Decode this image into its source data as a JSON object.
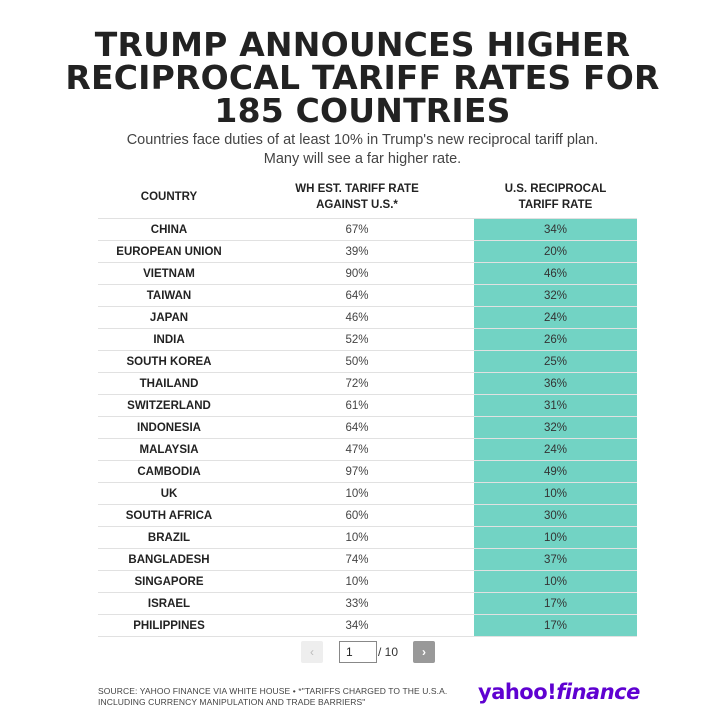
{
  "title_lines": [
    "TRUMP ANNOUNCES HIGHER",
    "RECIPROCAL TARIFF RATES FOR",
    "185 COUNTRIES"
  ],
  "subtitle_lines": [
    "Countries face duties of at least 10% in Trump's new reciprocal tariff plan.",
    "Many will see a far higher rate."
  ],
  "chart_data": {
    "type": "table",
    "columns": [
      "COUNTRY",
      "WH EST. TARIFF RATE AGAINST U.S.*",
      "U.S. RECIPROCAL TARIFF RATE"
    ],
    "column_header_lines": [
      [
        "COUNTRY"
      ],
      [
        "WH EST. TARIFF RATE",
        "AGAINST U.S.*"
      ],
      [
        "U.S. RECIPROCAL",
        "TARIFF RATE"
      ]
    ],
    "rows": [
      [
        "CHINA",
        "67%",
        "34%"
      ],
      [
        "EUROPEAN UNION",
        "39%",
        "20%"
      ],
      [
        "VIETNAM",
        "90%",
        "46%"
      ],
      [
        "TAIWAN",
        "64%",
        "32%"
      ],
      [
        "JAPAN",
        "46%",
        "24%"
      ],
      [
        "INDIA",
        "52%",
        "26%"
      ],
      [
        "SOUTH KOREA",
        "50%",
        "25%"
      ],
      [
        "THAILAND",
        "72%",
        "36%"
      ],
      [
        "SWITZERLAND",
        "61%",
        "31%"
      ],
      [
        "INDONESIA",
        "64%",
        "32%"
      ],
      [
        "MALAYSIA",
        "47%",
        "24%"
      ],
      [
        "CAMBODIA",
        "97%",
        "49%"
      ],
      [
        "UK",
        "10%",
        "10%"
      ],
      [
        "SOUTH AFRICA",
        "60%",
        "30%"
      ],
      [
        "BRAZIL",
        "10%",
        "10%"
      ],
      [
        "BANGLADESH",
        "74%",
        "37%"
      ],
      [
        "SINGAPORE",
        "10%",
        "10%"
      ],
      [
        "ISRAEL",
        "33%",
        "17%"
      ],
      [
        "PHILIPPINES",
        "34%",
        "17%"
      ]
    ]
  },
  "pagination": {
    "prev_icon": "‹",
    "next_icon": "›",
    "current_page": "1",
    "total_label": "/ 10"
  },
  "source_lines": [
    "SOURCE: YAHOO FINANCE VIA WHITE HOUSE • *\"TARIFFS CHARGED TO THE U.S.A.",
    "INCLUDING CURRENCY MANIPULATION AND TRADE BARRIERS\""
  ],
  "logo": {
    "part1": "yahoo",
    "part2": "!",
    "part3": "finance"
  },
  "colors": {
    "highlight_column": "#72d3c4",
    "logo_purple": "#5f01d1"
  }
}
